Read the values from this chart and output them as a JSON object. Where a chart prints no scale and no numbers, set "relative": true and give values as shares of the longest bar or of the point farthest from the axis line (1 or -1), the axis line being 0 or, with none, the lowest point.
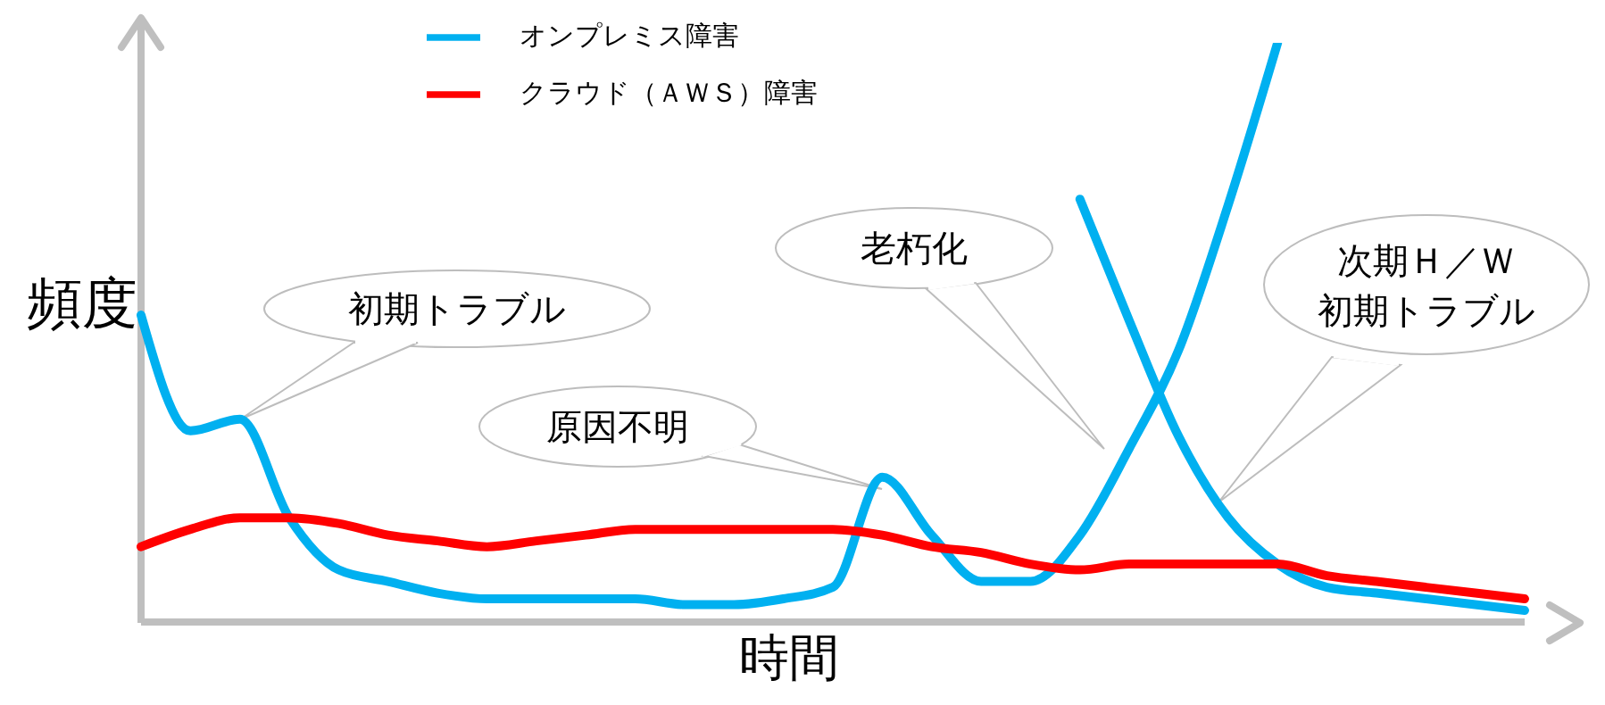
{
  "chart_data": {
    "type": "line",
    "relative": true,
    "xlabel": "時間",
    "ylabel": "頻度",
    "legend": "top",
    "categories": [
      null,
      null,
      null,
      null,
      null,
      null,
      null,
      null,
      null,
      null,
      null,
      null,
      null,
      null,
      null,
      null,
      null,
      null,
      null,
      null,
      null,
      null,
      null,
      null,
      null,
      null,
      null,
      null,
      null
    ],
    "series": [
      {
        "name": "オンプレミス障害",
        "color": "#00b0f0",
        "values": [
          0.53,
          0.33,
          0.35,
          0.18,
          0.09,
          0.07,
          0.05,
          0.04,
          0.04,
          0.04,
          0.04,
          0.03,
          0.03,
          0.04,
          0.06,
          0.25,
          0.15,
          0.07,
          0.07,
          0.15,
          0.3,
          0.47,
          0.72,
          1,
          null,
          null,
          null,
          null,
          null
        ]
      },
      {
        "color": "#00b0f0",
        "values": [
          null,
          null,
          null,
          null,
          null,
          null,
          null,
          null,
          null,
          null,
          null,
          null,
          null,
          null,
          null,
          null,
          null,
          null,
          null,
          0.73,
          0.52,
          0.32,
          0.18,
          0.1,
          0.06,
          0.05,
          0.04,
          0.03,
          0.02
        ]
      },
      {
        "name": "クラウド（ＡＷＳ）障害",
        "color": "#ff0000",
        "values": [
          0.13,
          0.16,
          0.18,
          0.18,
          0.17,
          0.15,
          0.14,
          0.13,
          0.14,
          0.15,
          0.16,
          0.16,
          0.16,
          0.16,
          0.16,
          0.15,
          0.13,
          0.12,
          0.1,
          0.09,
          0.1,
          0.1,
          0.1,
          0.1,
          0.08,
          0.07,
          0.06,
          0.05,
          0.04
        ]
      }
    ],
    "annotations": [
      "初期トラブル",
      "原因不明",
      "老朽化",
      "次期Ｈ／Ｗ",
      "初期トラブル"
    ]
  }
}
